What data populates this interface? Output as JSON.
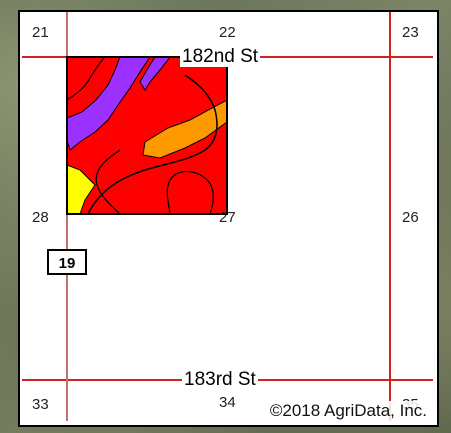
{
  "map": {
    "roads": {
      "north": "182nd St",
      "south": "183rd St"
    },
    "sections": {
      "s21": "21",
      "s22": "22",
      "s23": "23",
      "s28": "28",
      "s27": "27",
      "s26": "26",
      "s33": "33",
      "s34": "34",
      "s35": "35"
    },
    "parcel_label": "19",
    "copyright": "©2018 AgriData, Inc.",
    "colors": {
      "road": "#d42020",
      "soil_red": "#ff0000",
      "soil_purple": "#9b30ff",
      "soil_orange": "#ff9900",
      "soil_yellow": "#ffff00"
    }
  }
}
